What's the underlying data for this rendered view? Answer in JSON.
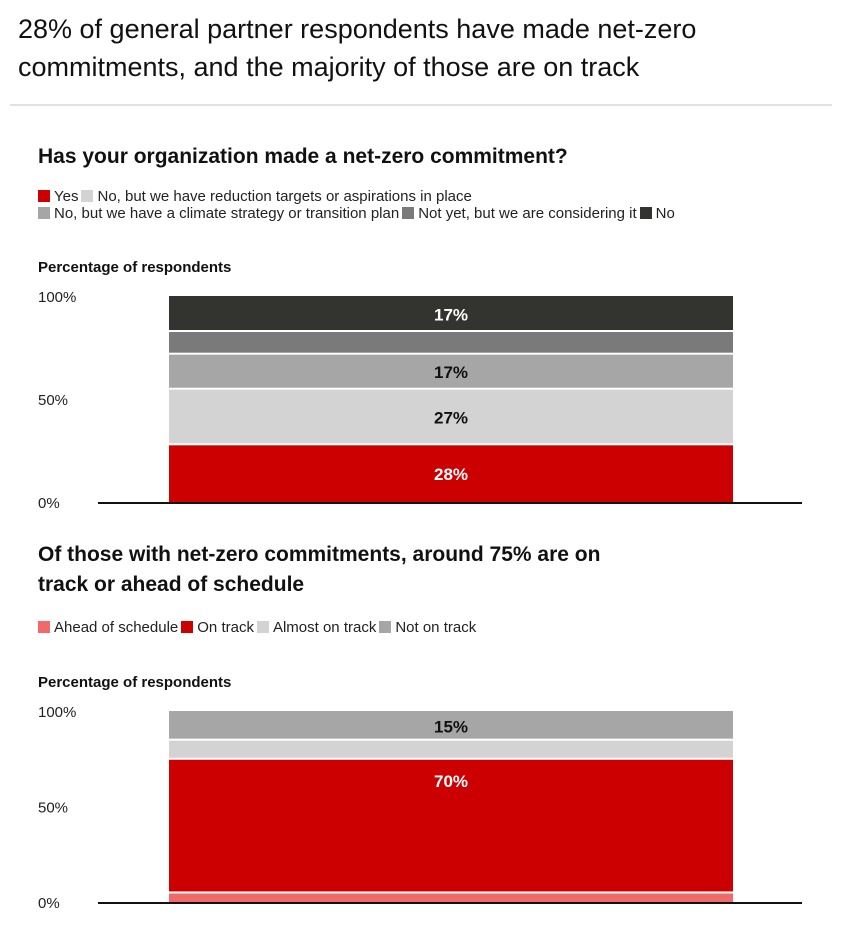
{
  "header": {
    "title_line1": "28% of general partner respondents have made net-zero",
    "title_line2": "commitments, and the majority of those are on track"
  },
  "chart_data": [
    {
      "type": "bar",
      "stacked": true,
      "title": "Has your organization made a net-zero commitment?",
      "ylabel": "Percentage of respondents",
      "xlabel": "",
      "ylim": [
        0,
        100
      ],
      "yticks": [
        {
          "value": 0,
          "label": "0%"
        },
        {
          "value": 50,
          "label": "50%"
        },
        {
          "value": 100,
          "label": "100%"
        }
      ],
      "legend_rows": [
        [
          0,
          1
        ],
        [
          2,
          3,
          4
        ]
      ],
      "series": [
        {
          "name": "Yes",
          "value": 28,
          "label": "28%",
          "color": "#cc0000",
          "label_color": "#ffffff"
        },
        {
          "name": "No, but we have reduction targets or aspirations in place",
          "value": 27,
          "label": "27%",
          "color": "#d3d3d3",
          "label_color": "#111111"
        },
        {
          "name": "No, but we have a climate strategy or transition plan",
          "value": 17,
          "label": "17%",
          "color": "#a6a6a6",
          "label_color": "#111111"
        },
        {
          "name": "Not yet, but we are considering it",
          "value": 11,
          "label": "",
          "color": "#7a7a7a",
          "label_color": "#ffffff"
        },
        {
          "name": "No",
          "value": 17,
          "label": "17%",
          "color": "#333330",
          "label_color": "#ffffff"
        }
      ]
    },
    {
      "type": "bar",
      "stacked": true,
      "title_line1": "Of those with net-zero commitments, around 75% are on",
      "title_line2": "track or ahead of schedule",
      "ylabel": "Percentage of respondents",
      "xlabel": "",
      "ylim": [
        0,
        100
      ],
      "yticks": [
        {
          "value": 0,
          "label": "0%"
        },
        {
          "value": 50,
          "label": "50%"
        },
        {
          "value": 100,
          "label": "100%"
        }
      ],
      "legend_rows": [
        [
          0,
          1,
          2,
          3
        ]
      ],
      "series": [
        {
          "name": "Ahead of schedule",
          "value": 5,
          "label": "",
          "color": "#f06a6a",
          "label_color": "#ffffff"
        },
        {
          "name": "On track",
          "value": 70,
          "label": "70%",
          "color": "#cc0000",
          "label_color": "#ffffff"
        },
        {
          "name": "Almost on track",
          "value": 10,
          "label": "",
          "color": "#d3d3d3",
          "label_color": "#111111"
        },
        {
          "name": "Not on track",
          "value": 15,
          "label": "15%",
          "color": "#a6a6a6",
          "label_color": "#111111"
        }
      ]
    }
  ]
}
